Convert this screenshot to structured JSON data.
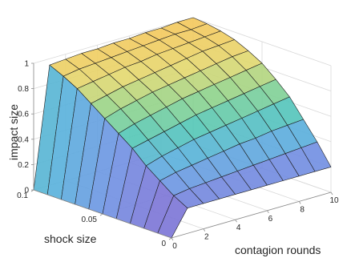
{
  "chart_data": {
    "type": "surface",
    "title": "",
    "xlabel": "contagion rounds",
    "ylabel": "shock size",
    "zlabel": "impact size",
    "xlim": [
      0,
      10
    ],
    "ylim": [
      0,
      0.1
    ],
    "zlim": [
      0,
      1
    ],
    "x_ticks": [
      "0",
      "2",
      "4",
      "6",
      "8",
      "10"
    ],
    "y_ticks": [
      "0",
      "0.05",
      "0.1"
    ],
    "z_ticks": [
      "0",
      "0.2",
      "0.4",
      "0.6",
      "0.8",
      "1"
    ],
    "x": [
      0,
      1,
      2,
      3,
      4,
      5,
      6,
      7,
      8,
      9,
      10
    ],
    "y": [
      0,
      0.01,
      0.02,
      0.03,
      0.04,
      0.05,
      0.06,
      0.07,
      0.08,
      0.09,
      0.1
    ],
    "z": [
      [
        0.0,
        0.2,
        0.2,
        0.2,
        0.2,
        0.2,
        0.2,
        0.2,
        0.2,
        0.2,
        0.2
      ],
      [
        0.0,
        0.26,
        0.28,
        0.29,
        0.3,
        0.31,
        0.32,
        0.33,
        0.34,
        0.35,
        0.36
      ],
      [
        0.0,
        0.34,
        0.37,
        0.39,
        0.41,
        0.43,
        0.45,
        0.46,
        0.48,
        0.49,
        0.5
      ],
      [
        0.0,
        0.42,
        0.46,
        0.49,
        0.52,
        0.54,
        0.56,
        0.58,
        0.6,
        0.62,
        0.64
      ],
      [
        0.0,
        0.52,
        0.55,
        0.58,
        0.61,
        0.64,
        0.66,
        0.68,
        0.7,
        0.72,
        0.74
      ],
      [
        0.0,
        0.6,
        0.64,
        0.67,
        0.7,
        0.73,
        0.75,
        0.77,
        0.79,
        0.81,
        0.83
      ],
      [
        0.0,
        0.68,
        0.72,
        0.75,
        0.78,
        0.8,
        0.82,
        0.84,
        0.86,
        0.88,
        0.89
      ],
      [
        0.0,
        0.76,
        0.79,
        0.82,
        0.84,
        0.86,
        0.88,
        0.9,
        0.92,
        0.93,
        0.94
      ],
      [
        0.0,
        0.84,
        0.86,
        0.88,
        0.9,
        0.91,
        0.93,
        0.94,
        0.95,
        0.96,
        0.97
      ],
      [
        0.0,
        0.9,
        0.92,
        0.93,
        0.94,
        0.95,
        0.96,
        0.97,
        0.98,
        0.98,
        0.99
      ],
      [
        0.0,
        0.95,
        0.96,
        0.97,
        0.97,
        0.98,
        0.98,
        0.99,
        0.99,
        1.0,
        1.0
      ]
    ],
    "colormap": [
      "#7b74d6",
      "#6f91e3",
      "#58b0dc",
      "#52c6b7",
      "#8fd38a",
      "#e3d86e",
      "#f5c75a"
    ],
    "grid": true,
    "legend": "none"
  }
}
